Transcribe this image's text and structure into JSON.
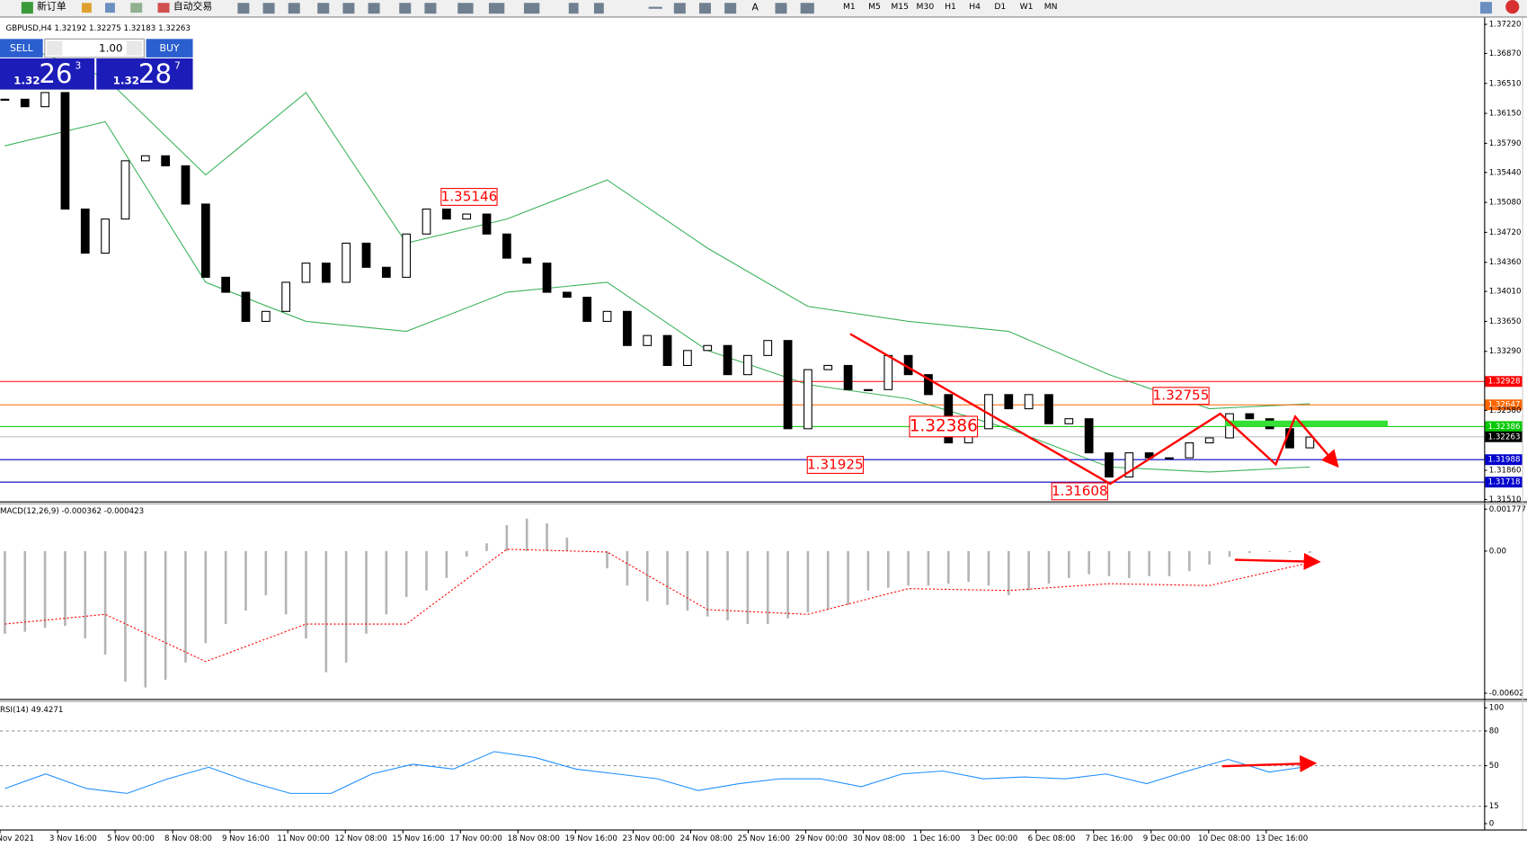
{
  "toolbar": {
    "buttons": [
      "新订单",
      "自动交易"
    ],
    "text_tool": "A",
    "timeframes": [
      "M1",
      "M5",
      "M15",
      "M30",
      "H1",
      "H4",
      "D1",
      "W1",
      "MN"
    ]
  },
  "trade_panel": {
    "sell": "SELL",
    "lot": "1.00",
    "buy": "BUY",
    "bid": {
      "big": "1.32",
      "main": "26",
      "pip": "3"
    },
    "ask": {
      "big": "1.32",
      "main": "28",
      "pip": "7"
    }
  },
  "chart_data": [
    {
      "type": "candlestick",
      "title": "GBPUSD,H4 1.32192 1.32275 1.32183 1.32263",
      "categories": [
        "Nov 2021",
        "3 Nov 16:00",
        "5 Nov 00:00",
        "8 Nov 08:00",
        "9 Nov 16:00",
        "11 Nov 00:00",
        "12 Nov 08:00",
        "15 Nov 16:00",
        "17 Nov 00:00",
        "18 Nov 08:00",
        "19 Nov 16:00",
        "23 Nov 00:00",
        "24 Nov 08:00",
        "25 Nov 16:00",
        "29 Nov 00:00",
        "30 Nov 08:00",
        "1 Dec 16:00",
        "3 Dec 00:00",
        "6 Dec 08:00",
        "7 Dec 16:00",
        "9 Dec 00:00",
        "10 Dec 08:00",
        "13 Dec 16:00"
      ],
      "close": [
        1.3632,
        1.3623,
        1.364,
        1.35,
        1.3447,
        1.3488,
        1.3558,
        1.3564,
        1.3552,
        1.3506,
        1.3418,
        1.34,
        1.3365,
        1.3377,
        1.3412,
        1.3435,
        1.3412,
        1.3459,
        1.343,
        1.3418,
        1.347,
        1.35,
        1.3488,
        1.3494,
        1.347,
        1.3441,
        1.3435,
        1.34,
        1.3394,
        1.3365,
        1.3377,
        1.3336,
        1.3348,
        1.3312,
        1.333,
        1.3336,
        1.3301,
        1.3324,
        1.3342,
        1.3236,
        1.3307,
        1.3312,
        1.3283,
        1.3283,
        1.3324,
        1.3301,
        1.3277,
        1.3219,
        1.3236,
        1.3277,
        1.326,
        1.3277,
        1.3242,
        1.3248,
        1.3207,
        1.3178,
        1.3207,
        1.3201,
        1.3201,
        1.3219,
        1.3225,
        1.3254,
        1.3248,
        1.3236,
        1.3213,
        1.3226
      ],
      "upper_band": [
        1.3704,
        1.3658,
        1.3541,
        1.364,
        1.3459,
        1.3488,
        1.3535,
        1.3453,
        1.3383,
        1.3365,
        1.3353,
        1.3301,
        1.326,
        1.3266
      ],
      "lower_band": [
        1.3576,
        1.3605,
        1.3412,
        1.3365,
        1.3353,
        1.34,
        1.3412,
        1.333,
        1.3289,
        1.3272,
        1.3236,
        1.319,
        1.3184,
        1.319
      ],
      "band_color": "#3cb35a",
      "color_up": "#ffffff",
      "color_down": "#000000",
      "ylim": [
        1.3151,
        1.3722
      ],
      "yticks": [
        {
          "value": 1.3722,
          "label": "1.37220"
        },
        {
          "value": 1.3687,
          "label": "1.36870"
        },
        {
          "value": 1.3651,
          "label": "1.36510"
        },
        {
          "value": 1.3615,
          "label": "1.36150"
        },
        {
          "value": 1.3579,
          "label": "1.35790"
        },
        {
          "value": 1.3544,
          "label": "1.35440"
        },
        {
          "value": 1.3508,
          "label": "1.35080"
        },
        {
          "value": 1.3472,
          "label": "1.34720"
        },
        {
          "value": 1.3436,
          "label": "1.34360"
        },
        {
          "value": 1.3401,
          "label": "1.34010"
        },
        {
          "value": 1.3365,
          "label": "1.33650"
        },
        {
          "value": 1.3329,
          "label": "1.33290"
        },
        {
          "value": 1.3258,
          "label": "1.32580"
        },
        {
          "value": 1.3186,
          "label": "1.31860"
        },
        {
          "value": 1.3151,
          "label": "1.31510"
        }
      ],
      "levels": [
        {
          "value": 1.32928,
          "color": "#ff0000"
        },
        {
          "value": 1.32647,
          "color": "#ff6600"
        },
        {
          "value": 1.32386,
          "color": "#00c800"
        },
        {
          "value": 1.31988,
          "color": "#0000cd"
        },
        {
          "value": 1.31718,
          "color": "#0000cd"
        }
      ],
      "current": 1.32263,
      "annotations": [
        1.35146,
        1.32755,
        1.32386,
        1.31925,
        1.31608
      ]
    },
    {
      "type": "histogram",
      "title": "MACD(12,26,9) -0.000362 -0.000423",
      "values": [
        -0.0035,
        -0.00342,
        -0.00325,
        -0.00317,
        -0.0037,
        -0.00439,
        -0.00553,
        -0.00578,
        -0.00545,
        -0.00472,
        -0.0039,
        -0.00309,
        -0.00252,
        -0.00187,
        -0.00268,
        -0.0037,
        -0.00513,
        -0.00472,
        -0.0035,
        -0.00268,
        -0.00195,
        -0.00167,
        -0.00114,
        -0.00024,
        0.00033,
        0.0011,
        0.00138,
        0.00118,
        0.00057,
        -4e-05,
        -0.00073,
        -0.00146,
        -0.00212,
        -0.00228,
        -0.00252,
        -0.00277,
        -0.00293,
        -0.00309,
        -0.00309,
        -0.00285,
        -0.0026,
        -0.00248,
        -0.00228,
        -0.00167,
        -0.00155,
        -0.00146,
        -0.00146,
        -0.00138,
        -0.0013,
        -0.00146,
        -0.00187,
        -0.00167,
        -0.00138,
        -0.00114,
        -0.00098,
        -0.00106,
        -0.00114,
        -0.00106,
        -0.00106,
        -0.00085,
        -0.00057,
        -0.00024,
        -8e-05,
        -4e-05,
        -4e-05,
        -8e-05
      ],
      "signal": [
        -0.00309,
        -0.00268,
        -0.00468,
        -0.00309,
        -0.00309,
        8e-05,
        -4e-05,
        -0.00248,
        -0.00268,
        -0.00159,
        -0.00167,
        -0.00138,
        -0.00146,
        -0.00049
      ],
      "color": "#b4b4b4",
      "signal_color": "#ff0000",
      "ylim": [
        -0.00602,
        0.001777
      ],
      "yticks": [
        0.001777,
        {
          "value": 0,
          "label": "0.00"
        },
        -0.00602
      ]
    },
    {
      "type": "line",
      "title": "RSI(14) 49.4271",
      "values": [
        30.3,
        42.9,
        30.3,
        26.1,
        38.7,
        48.7,
        36.1,
        26.1,
        26.1,
        42.9,
        51.3,
        47.1,
        62.2,
        57.1,
        47.1,
        42.9,
        38.7,
        28.6,
        34.5,
        38.7,
        38.7,
        31.9,
        42.9,
        45.4,
        38.7,
        40.3,
        38.7,
        42.9,
        34.5,
        45.4,
        55.5,
        44.5,
        49.6
      ],
      "color": "#1e90ff",
      "ylim": [
        0,
        100
      ],
      "yticks": [
        100,
        80,
        50,
        15,
        0
      ],
      "levels": [
        80,
        50,
        15
      ]
    }
  ]
}
